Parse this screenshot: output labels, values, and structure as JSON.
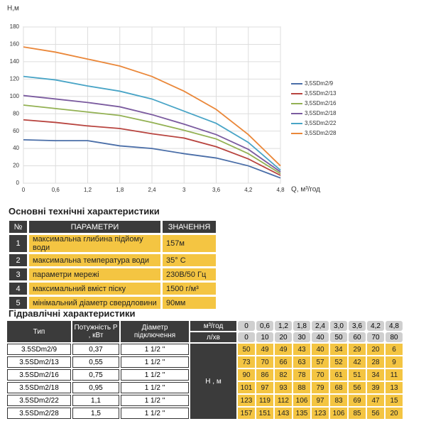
{
  "chart_data": {
    "type": "line",
    "ylabel": "Н,м",
    "xlabel": "Q, м³/год",
    "x": [
      0,
      0.6,
      1.2,
      1.8,
      2.4,
      3,
      3.6,
      4.2,
      4.8
    ],
    "xlim": [
      0,
      4.8
    ],
    "ylim": [
      0,
      180
    ],
    "xticks": [
      0,
      {
        "value": 0.6,
        "label": "0,6"
      },
      {
        "value": 1.2,
        "label": "1,2"
      },
      {
        "value": 1.8,
        "label": "1,8"
      },
      {
        "value": 2.4,
        "label": "2,4"
      },
      3,
      {
        "value": 3.6,
        "label": "3,6"
      },
      {
        "value": 4.2,
        "label": "4,2"
      },
      {
        "value": 4.8,
        "label": "4,8"
      }
    ],
    "yticks": [
      0,
      20,
      40,
      60,
      80,
      100,
      120,
      140,
      160,
      180
    ],
    "grid": true,
    "series": [
      {
        "name": "3,5SDm2/9",
        "color": "#4a6ea8",
        "values": [
          50,
          49,
          49,
          43,
          40,
          34,
          29,
          20,
          6
        ]
      },
      {
        "name": "3,5SDm2/13",
        "color": "#b8443f",
        "values": [
          73,
          70,
          66,
          63,
          57,
          52,
          42,
          28,
          9
        ]
      },
      {
        "name": "3,5SDm2/16",
        "color": "#93b153",
        "values": [
          90,
          86,
          82,
          78,
          70,
          61,
          51,
          34,
          11
        ]
      },
      {
        "name": "3,5SDm2/18",
        "color": "#7b5b9f",
        "values": [
          101,
          97,
          93,
          88,
          79,
          68,
          56,
          39,
          13
        ]
      },
      {
        "name": "3,5SDm2/22",
        "color": "#48a4c6",
        "values": [
          123,
          119,
          112,
          106,
          97,
          83,
          69,
          47,
          15
        ]
      },
      {
        "name": "3,5SDm2/28",
        "color": "#ea8739",
        "values": [
          157,
          151,
          143,
          135,
          123,
          106,
          85,
          56,
          20
        ]
      }
    ]
  },
  "specs": {
    "title": "Основні технічні характеристики",
    "header": [
      "№",
      "ПАРАМЕТРИ",
      "ЗНАЧЕННЯ"
    ],
    "rows": [
      [
        "1",
        "максимальна глибина підйому води",
        "157м"
      ],
      [
        "2",
        "максимальна температура води",
        "35° С"
      ],
      [
        "3",
        "параметри мережі",
        "230В/50 Гц"
      ],
      [
        "4",
        "максимальний вміст піску",
        "1500 г/м³"
      ],
      [
        "5",
        "мінімальний діаметр свердловини",
        "90мм"
      ]
    ]
  },
  "hydraulic": {
    "title": "Гідравлічні характеристики",
    "header": [
      "Тип",
      "Потужність Р , кВт",
      "Діаметр підключення",
      "м³/год",
      "л/хв",
      "Н , м"
    ],
    "q_m3": [
      "0",
      "0,6",
      "1,2",
      "1,8",
      "2,4",
      "3,0",
      "3,6",
      "4,2",
      "4,8"
    ],
    "q_lmin": [
      "0",
      "10",
      "20",
      "30",
      "40",
      "50",
      "60",
      "70",
      "80"
    ],
    "rows": [
      [
        "3.5SDm2/9",
        "0,37",
        "1 1/2 \""
      ],
      [
        "3.5SDm2/13",
        "0,55",
        "1 1/2 \""
      ],
      [
        "3.5SDm2/16",
        "0,75",
        "1 1/2 \""
      ],
      [
        "3.5SDm2/18",
        "0,95",
        "1 1/2 \""
      ],
      [
        "3.5SDm2/22",
        "1,1",
        "1 1/2 \""
      ],
      [
        "3.5SDm2/28",
        "1,5",
        "1 1/2 \""
      ]
    ]
  }
}
